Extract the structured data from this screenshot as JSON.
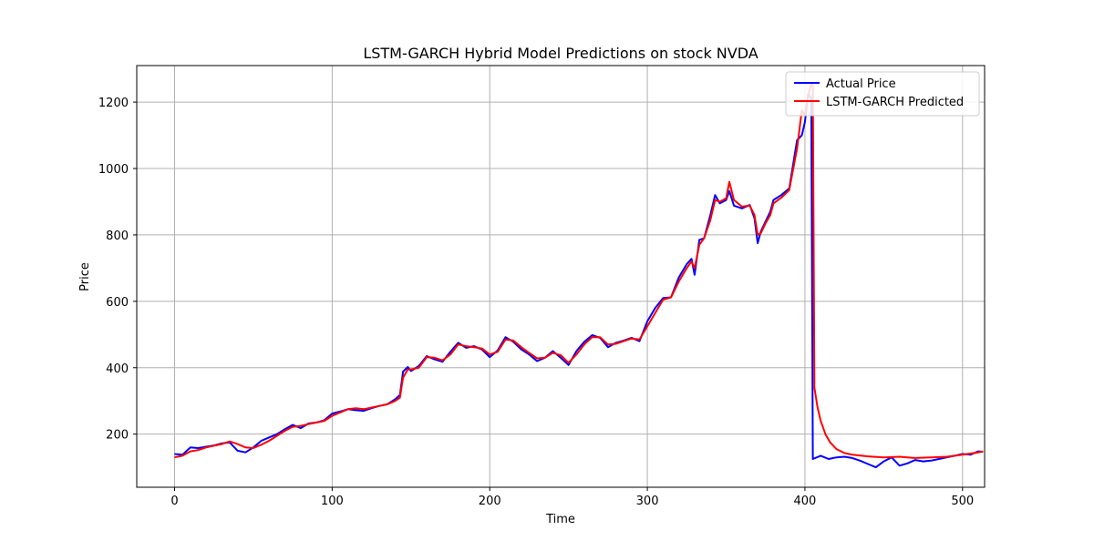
{
  "chart_data": {
    "type": "line",
    "title": "LSTM-GARCH Hybrid Model Predictions on stock NVDA",
    "xlabel": "Time",
    "ylabel": "Price",
    "xlim": [
      -24,
      514
    ],
    "ylim": [
      40,
      1310
    ],
    "xticks": [
      0,
      100,
      200,
      300,
      400,
      500
    ],
    "yticks": [
      200,
      400,
      600,
      800,
      1000,
      1200
    ],
    "grid": true,
    "legend_position": "top-right",
    "series": [
      {
        "name": "Actual Price",
        "color": "#0000ff",
        "points": [
          [
            0,
            140
          ],
          [
            5,
            138
          ],
          [
            10,
            160
          ],
          [
            15,
            158
          ],
          [
            20,
            162
          ],
          [
            25,
            166
          ],
          [
            30,
            172
          ],
          [
            35,
            175
          ],
          [
            40,
            150
          ],
          [
            45,
            145
          ],
          [
            50,
            160
          ],
          [
            55,
            180
          ],
          [
            60,
            190
          ],
          [
            65,
            200
          ],
          [
            70,
            215
          ],
          [
            75,
            228
          ],
          [
            80,
            218
          ],
          [
            85,
            232
          ],
          [
            90,
            235
          ],
          [
            95,
            242
          ],
          [
            100,
            262
          ],
          [
            105,
            268
          ],
          [
            110,
            275
          ],
          [
            115,
            272
          ],
          [
            120,
            270
          ],
          [
            125,
            278
          ],
          [
            130,
            285
          ],
          [
            135,
            290
          ],
          [
            140,
            305
          ],
          [
            143,
            318
          ],
          [
            145,
            388
          ],
          [
            148,
            402
          ],
          [
            150,
            390
          ],
          [
            155,
            405
          ],
          [
            160,
            435
          ],
          [
            165,
            425
          ],
          [
            170,
            418
          ],
          [
            175,
            448
          ],
          [
            180,
            475
          ],
          [
            185,
            460
          ],
          [
            190,
            465
          ],
          [
            195,
            455
          ],
          [
            200,
            432
          ],
          [
            205,
            452
          ],
          [
            210,
            492
          ],
          [
            215,
            478
          ],
          [
            220,
            455
          ],
          [
            225,
            440
          ],
          [
            230,
            420
          ],
          [
            235,
            430
          ],
          [
            240,
            450
          ],
          [
            245,
            430
          ],
          [
            250,
            408
          ],
          [
            255,
            450
          ],
          [
            260,
            478
          ],
          [
            265,
            498
          ],
          [
            270,
            490
          ],
          [
            275,
            462
          ],
          [
            280,
            475
          ],
          [
            285,
            482
          ],
          [
            290,
            490
          ],
          [
            295,
            480
          ],
          [
            300,
            540
          ],
          [
            305,
            580
          ],
          [
            310,
            610
          ],
          [
            315,
            612
          ],
          [
            320,
            672
          ],
          [
            325,
            712
          ],
          [
            328,
            728
          ],
          [
            330,
            680
          ],
          [
            333,
            785
          ],
          [
            336,
            790
          ],
          [
            340,
            860
          ],
          [
            343,
            920
          ],
          [
            346,
            895
          ],
          [
            350,
            905
          ],
          [
            352,
            932
          ],
          [
            355,
            888
          ],
          [
            360,
            880
          ],
          [
            365,
            890
          ],
          [
            368,
            850
          ],
          [
            370,
            775
          ],
          [
            372,
            810
          ],
          [
            375,
            840
          ],
          [
            378,
            870
          ],
          [
            380,
            905
          ],
          [
            385,
            920
          ],
          [
            390,
            940
          ],
          [
            395,
            1085
          ],
          [
            398,
            1100
          ],
          [
            400,
            1140
          ],
          [
            402,
            1225
          ],
          [
            404,
            1210
          ],
          [
            405,
            125
          ],
          [
            410,
            135
          ],
          [
            415,
            125
          ],
          [
            420,
            130
          ],
          [
            425,
            132
          ],
          [
            430,
            128
          ],
          [
            435,
            120
          ],
          [
            440,
            110
          ],
          [
            445,
            100
          ],
          [
            450,
            118
          ],
          [
            455,
            130
          ],
          [
            460,
            105
          ],
          [
            465,
            112
          ],
          [
            470,
            122
          ],
          [
            475,
            118
          ],
          [
            480,
            120
          ],
          [
            485,
            125
          ],
          [
            490,
            130
          ],
          [
            495,
            135
          ],
          [
            500,
            140
          ],
          [
            505,
            138
          ],
          [
            510,
            148
          ],
          [
            513,
            147
          ]
        ]
      },
      {
        "name": "LSTM-GARCH Predicted",
        "color": "#ff0000",
        "points": [
          [
            0,
            130
          ],
          [
            5,
            135
          ],
          [
            10,
            148
          ],
          [
            15,
            152
          ],
          [
            20,
            160
          ],
          [
            25,
            165
          ],
          [
            30,
            170
          ],
          [
            35,
            178
          ],
          [
            40,
            170
          ],
          [
            45,
            160
          ],
          [
            50,
            158
          ],
          [
            55,
            168
          ],
          [
            60,
            180
          ],
          [
            65,
            195
          ],
          [
            70,
            210
          ],
          [
            75,
            222
          ],
          [
            80,
            225
          ],
          [
            85,
            230
          ],
          [
            90,
            235
          ],
          [
            95,
            240
          ],
          [
            100,
            255
          ],
          [
            105,
            265
          ],
          [
            110,
            275
          ],
          [
            115,
            278
          ],
          [
            120,
            275
          ],
          [
            125,
            280
          ],
          [
            130,
            285
          ],
          [
            135,
            290
          ],
          [
            140,
            300
          ],
          [
            143,
            310
          ],
          [
            145,
            370
          ],
          [
            148,
            395
          ],
          [
            150,
            395
          ],
          [
            155,
            400
          ],
          [
            160,
            432
          ],
          [
            165,
            430
          ],
          [
            170,
            422
          ],
          [
            175,
            440
          ],
          [
            180,
            470
          ],
          [
            185,
            465
          ],
          [
            190,
            462
          ],
          [
            195,
            458
          ],
          [
            200,
            440
          ],
          [
            205,
            448
          ],
          [
            210,
            485
          ],
          [
            215,
            482
          ],
          [
            220,
            462
          ],
          [
            225,
            445
          ],
          [
            230,
            428
          ],
          [
            235,
            430
          ],
          [
            240,
            445
          ],
          [
            245,
            438
          ],
          [
            250,
            415
          ],
          [
            255,
            440
          ],
          [
            260,
            470
          ],
          [
            265,
            492
          ],
          [
            270,
            492
          ],
          [
            275,
            470
          ],
          [
            280,
            472
          ],
          [
            285,
            480
          ],
          [
            290,
            488
          ],
          [
            295,
            485
          ],
          [
            300,
            525
          ],
          [
            305,
            565
          ],
          [
            310,
            605
          ],
          [
            315,
            612
          ],
          [
            320,
            660
          ],
          [
            325,
            700
          ],
          [
            328,
            720
          ],
          [
            330,
            700
          ],
          [
            333,
            770
          ],
          [
            336,
            790
          ],
          [
            340,
            845
          ],
          [
            343,
            905
          ],
          [
            346,
            900
          ],
          [
            350,
            910
          ],
          [
            352,
            960
          ],
          [
            355,
            905
          ],
          [
            360,
            885
          ],
          [
            365,
            888
          ],
          [
            368,
            860
          ],
          [
            370,
            800
          ],
          [
            372,
            805
          ],
          [
            375,
            835
          ],
          [
            378,
            860
          ],
          [
            380,
            895
          ],
          [
            385,
            912
          ],
          [
            390,
            935
          ],
          [
            395,
            1060
          ],
          [
            398,
            1175
          ],
          [
            400,
            1160
          ],
          [
            402,
            1220
          ],
          [
            404,
            1255
          ],
          [
            405,
            1250
          ],
          [
            406,
            340
          ],
          [
            408,
            280
          ],
          [
            410,
            240
          ],
          [
            413,
            200
          ],
          [
            416,
            175
          ],
          [
            420,
            155
          ],
          [
            425,
            143
          ],
          [
            430,
            138
          ],
          [
            440,
            133
          ],
          [
            450,
            130
          ],
          [
            460,
            132
          ],
          [
            465,
            130
          ],
          [
            470,
            128
          ],
          [
            480,
            130
          ],
          [
            490,
            132
          ],
          [
            500,
            138
          ],
          [
            510,
            145
          ],
          [
            513,
            148
          ]
        ]
      }
    ]
  }
}
